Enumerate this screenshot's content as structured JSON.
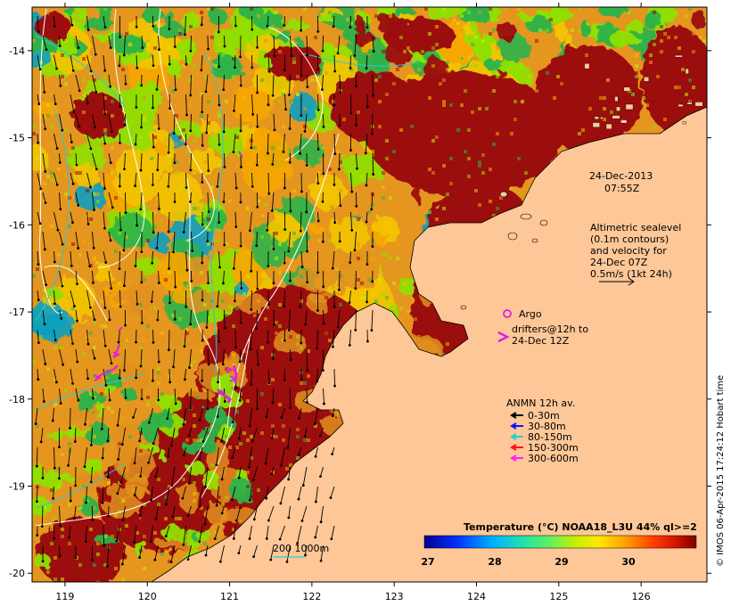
{
  "map": {
    "date": "24-Dec-2013",
    "time": "07:55Z",
    "lon_range": [
      118.6,
      126.8
    ],
    "lat_range": [
      -20.1,
      -13.5
    ],
    "lon_ticks": [
      "119",
      "120",
      "121",
      "122",
      "123",
      "124",
      "125",
      "126"
    ],
    "lat_ticks": [
      "-14",
      "-15",
      "-16",
      "-17",
      "-18",
      "-19",
      "-20"
    ],
    "colors": {
      "land": "#fdc797",
      "deep": "#9c0a0a",
      "warm": "#e2911e",
      "mid": "#f3c400",
      "cool": "#8fe000",
      "cold": "#2db24a",
      "coldest": "#12a0c0",
      "contour": "#ffffff",
      "isobath": "#2ec7d8",
      "argo": "#e020e0"
    }
  },
  "altimetry": {
    "line1": "Altimetric sealevel",
    "line2": "(0.1m contours)",
    "line3": "and velocity for",
    "line4": "24-Dec 07Z",
    "line5": "0.5m/s (1kt 24h)"
  },
  "argo_label": "Argo",
  "drifters": {
    "line1": "drifters@12h to",
    "line2": "24-Dec 12Z"
  },
  "anmn": {
    "title": "ANMN 12h av.",
    "items": [
      {
        "label": "0-30m",
        "color": "#000000"
      },
      {
        "label": "30-80m",
        "color": "#1010ff"
      },
      {
        "label": "80-150m",
        "color": "#20d0d0"
      },
      {
        "label": "150-300m",
        "color": "#ff1010"
      },
      {
        "label": "300-600m",
        "color": "#ff20ff"
      }
    ]
  },
  "isobath_label": "200  1000m",
  "colorbar": {
    "title": "Temperature (°C) NOAA18_L3U 44% ql>=2",
    "ticks": [
      "27",
      "28",
      "29",
      "30"
    ]
  },
  "side_credit": "© IMOS 06-Apr-2015 17:24:12 Hobart time"
}
